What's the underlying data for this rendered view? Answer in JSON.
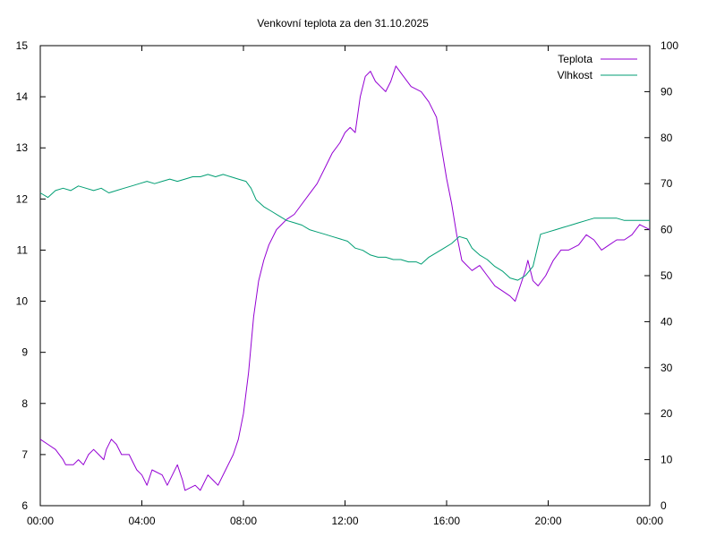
{
  "chart_data": {
    "type": "line",
    "title": "Venkovní teplota za den 31.10.2025",
    "xlabel": "",
    "ylabel": "",
    "y2label": "",
    "x_unit": "hours",
    "xlim": [
      0,
      24
    ],
    "ylim": [
      6,
      15
    ],
    "y2lim": [
      0,
      100
    ],
    "x_ticks": [
      0,
      4,
      8,
      12,
      16,
      20,
      24
    ],
    "x_tick_labels": [
      "00:00",
      "04:00",
      "08:00",
      "12:00",
      "16:00",
      "20:00",
      "00:00"
    ],
    "y_ticks": [
      6,
      7,
      8,
      9,
      10,
      11,
      12,
      13,
      14,
      15
    ],
    "y_tick_labels": [
      "6",
      "7",
      "8",
      "9",
      "10",
      "11",
      "12",
      "13",
      "14",
      "15"
    ],
    "y2_ticks": [
      0,
      10,
      20,
      30,
      40,
      50,
      60,
      70,
      80,
      90,
      100
    ],
    "y2_tick_labels": [
      "0",
      "10",
      "20",
      "30",
      "40",
      "50",
      "60",
      "70",
      "80",
      "90",
      "100"
    ],
    "grid": false,
    "legend_position": "top-right",
    "series": [
      {
        "name": "Teplota",
        "axis": "left",
        "color": "#9400d3",
        "points": [
          [
            0.0,
            7.3
          ],
          [
            0.3,
            7.2
          ],
          [
            0.6,
            7.1
          ],
          [
            0.9,
            6.9
          ],
          [
            1.0,
            6.8
          ],
          [
            1.3,
            6.8
          ],
          [
            1.5,
            6.9
          ],
          [
            1.7,
            6.8
          ],
          [
            1.9,
            7.0
          ],
          [
            2.1,
            7.1
          ],
          [
            2.3,
            7.0
          ],
          [
            2.5,
            6.9
          ],
          [
            2.6,
            7.1
          ],
          [
            2.8,
            7.3
          ],
          [
            3.0,
            7.2
          ],
          [
            3.2,
            7.0
          ],
          [
            3.5,
            7.0
          ],
          [
            3.6,
            6.9
          ],
          [
            3.8,
            6.7
          ],
          [
            4.0,
            6.6
          ],
          [
            4.2,
            6.4
          ],
          [
            4.4,
            6.7
          ],
          [
            4.8,
            6.6
          ],
          [
            5.0,
            6.4
          ],
          [
            5.2,
            6.6
          ],
          [
            5.4,
            6.8
          ],
          [
            5.6,
            6.5
          ],
          [
            5.7,
            6.3
          ],
          [
            6.1,
            6.4
          ],
          [
            6.3,
            6.3
          ],
          [
            6.6,
            6.6
          ],
          [
            6.8,
            6.5
          ],
          [
            7.0,
            6.4
          ],
          [
            7.3,
            6.7
          ],
          [
            7.6,
            7.0
          ],
          [
            7.8,
            7.3
          ],
          [
            8.0,
            7.8
          ],
          [
            8.2,
            8.6
          ],
          [
            8.4,
            9.7
          ],
          [
            8.6,
            10.4
          ],
          [
            8.8,
            10.8
          ],
          [
            9.0,
            11.1
          ],
          [
            9.3,
            11.4
          ],
          [
            9.5,
            11.5
          ],
          [
            9.7,
            11.6
          ],
          [
            10.0,
            11.7
          ],
          [
            10.3,
            11.9
          ],
          [
            10.6,
            12.1
          ],
          [
            10.9,
            12.3
          ],
          [
            11.2,
            12.6
          ],
          [
            11.5,
            12.9
          ],
          [
            11.8,
            13.1
          ],
          [
            12.0,
            13.3
          ],
          [
            12.2,
            13.4
          ],
          [
            12.4,
            13.3
          ],
          [
            12.6,
            14.0
          ],
          [
            12.8,
            14.4
          ],
          [
            13.0,
            14.5
          ],
          [
            13.2,
            14.3
          ],
          [
            13.4,
            14.2
          ],
          [
            13.6,
            14.1
          ],
          [
            13.8,
            14.3
          ],
          [
            14.0,
            14.6
          ],
          [
            14.3,
            14.4
          ],
          [
            14.6,
            14.2
          ],
          [
            15.0,
            14.1
          ],
          [
            15.3,
            13.9
          ],
          [
            15.6,
            13.6
          ],
          [
            15.8,
            13.0
          ],
          [
            16.0,
            12.4
          ],
          [
            16.2,
            11.9
          ],
          [
            16.4,
            11.3
          ],
          [
            16.6,
            10.8
          ],
          [
            16.8,
            10.7
          ],
          [
            17.0,
            10.6
          ],
          [
            17.3,
            10.7
          ],
          [
            17.6,
            10.5
          ],
          [
            17.9,
            10.3
          ],
          [
            18.2,
            10.2
          ],
          [
            18.5,
            10.1
          ],
          [
            18.7,
            10.0
          ],
          [
            18.9,
            10.3
          ],
          [
            19.1,
            10.6
          ],
          [
            19.2,
            10.8
          ],
          [
            19.4,
            10.4
          ],
          [
            19.6,
            10.3
          ],
          [
            19.9,
            10.5
          ],
          [
            20.2,
            10.8
          ],
          [
            20.5,
            11.0
          ],
          [
            20.8,
            11.0
          ],
          [
            21.2,
            11.1
          ],
          [
            21.5,
            11.3
          ],
          [
            21.8,
            11.2
          ],
          [
            22.1,
            11.0
          ],
          [
            22.4,
            11.1
          ],
          [
            22.7,
            11.2
          ],
          [
            23.0,
            11.2
          ],
          [
            23.3,
            11.3
          ],
          [
            23.6,
            11.5
          ],
          [
            24.0,
            11.4
          ]
        ]
      },
      {
        "name": "Vlhkost",
        "axis": "right",
        "color": "#009e73",
        "points": [
          [
            0.0,
            68
          ],
          [
            0.3,
            67
          ],
          [
            0.6,
            68.5
          ],
          [
            0.9,
            69
          ],
          [
            1.2,
            68.5
          ],
          [
            1.5,
            69.5
          ],
          [
            1.8,
            69
          ],
          [
            2.1,
            68.5
          ],
          [
            2.4,
            69
          ],
          [
            2.7,
            68
          ],
          [
            3.0,
            68.5
          ],
          [
            3.3,
            69
          ],
          [
            3.6,
            69.5
          ],
          [
            3.9,
            70
          ],
          [
            4.2,
            70.5
          ],
          [
            4.5,
            70
          ],
          [
            4.8,
            70.5
          ],
          [
            5.1,
            71
          ],
          [
            5.4,
            70.5
          ],
          [
            5.7,
            71
          ],
          [
            6.0,
            71.5
          ],
          [
            6.3,
            71.5
          ],
          [
            6.6,
            72
          ],
          [
            6.9,
            71.5
          ],
          [
            7.2,
            72
          ],
          [
            7.5,
            71.5
          ],
          [
            7.8,
            71
          ],
          [
            8.1,
            70.5
          ],
          [
            8.3,
            69
          ],
          [
            8.5,
            66.5
          ],
          [
            8.8,
            65
          ],
          [
            9.1,
            64
          ],
          [
            9.4,
            63
          ],
          [
            9.7,
            62
          ],
          [
            10.0,
            61.5
          ],
          [
            10.3,
            61
          ],
          [
            10.6,
            60
          ],
          [
            10.9,
            59.5
          ],
          [
            11.2,
            59
          ],
          [
            11.5,
            58.5
          ],
          [
            11.8,
            58
          ],
          [
            12.1,
            57.5
          ],
          [
            12.4,
            56
          ],
          [
            12.7,
            55.5
          ],
          [
            13.0,
            54.5
          ],
          [
            13.3,
            54
          ],
          [
            13.6,
            54
          ],
          [
            13.9,
            53.5
          ],
          [
            14.2,
            53.5
          ],
          [
            14.5,
            53
          ],
          [
            14.8,
            53
          ],
          [
            15.0,
            52.5
          ],
          [
            15.3,
            54
          ],
          [
            15.6,
            55
          ],
          [
            15.9,
            56
          ],
          [
            16.2,
            57
          ],
          [
            16.5,
            58.5
          ],
          [
            16.8,
            58
          ],
          [
            17.0,
            56
          ],
          [
            17.3,
            54.5
          ],
          [
            17.6,
            53.5
          ],
          [
            17.9,
            52
          ],
          [
            18.2,
            51
          ],
          [
            18.5,
            49.5
          ],
          [
            18.8,
            49
          ],
          [
            19.1,
            50
          ],
          [
            19.4,
            52
          ],
          [
            19.7,
            59
          ],
          [
            20.0,
            59.5
          ],
          [
            20.3,
            60
          ],
          [
            20.6,
            60.5
          ],
          [
            20.9,
            61
          ],
          [
            21.2,
            61.5
          ],
          [
            21.5,
            62
          ],
          [
            21.8,
            62.5
          ],
          [
            22.1,
            62.5
          ],
          [
            22.4,
            62.5
          ],
          [
            22.7,
            62.5
          ],
          [
            23.0,
            62
          ],
          [
            23.3,
            62
          ],
          [
            23.6,
            62
          ],
          [
            24.0,
            62
          ]
        ]
      }
    ]
  }
}
